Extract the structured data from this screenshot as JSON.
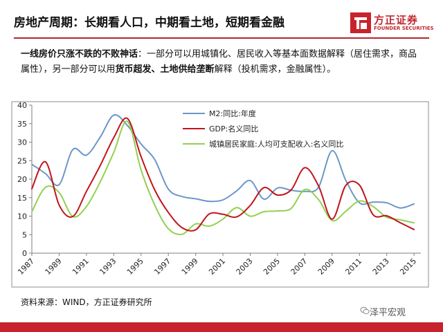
{
  "header": {
    "title": "房地产周期：长期看人口，中期看土地，短期看金融",
    "logo_cn": "方正证券",
    "logo_en": "FOUNDER SECURITIES"
  },
  "intro": {
    "lead": "一线房价只涨不跌的不败神话",
    "text1": "：一部分可以用城镇化、居民收入等基本面数据解释（居住需求，商品属性），另一部分可以用",
    "em1": "货币超发",
    "sep": "、",
    "em2": "土地供给垄断",
    "text2": "解释（投机需求，金融属性）。"
  },
  "colors": {
    "m2": "#6b96c8",
    "gdp": "#c0141c",
    "income": "#92d050",
    "accent": "#c8232c"
  },
  "chart_data": {
    "type": "line",
    "title": "",
    "xlabel": "",
    "ylabel": "",
    "xlim": [
      1987,
      2015.5
    ],
    "ylim": [
      0,
      40
    ],
    "yticks": [
      0,
      5,
      10,
      15,
      20,
      25,
      30,
      35,
      40
    ],
    "xticks": [
      1987,
      1989,
      1991,
      1993,
      1995,
      1997,
      1999,
      2001,
      2003,
      2005,
      2007,
      2009,
      2011,
      2013,
      2015
    ],
    "grid": false,
    "legend_position": "top-right",
    "series": [
      {
        "name": "M2:同比:年度",
        "color_key": "m2",
        "x": [
          1987,
          1988,
          1989,
          1990,
          1991,
          1992,
          1993,
          1994,
          1995,
          1996,
          1997,
          1998,
          1999,
          2000,
          2001,
          2002,
          2003,
          2004,
          2005,
          2006,
          2007,
          2008,
          2009,
          2010,
          2011,
          2012,
          2013,
          2014,
          2015
        ],
        "y": [
          24.0,
          21.5,
          18.5,
          28.0,
          26.5,
          31.3,
          37.3,
          34.5,
          29.5,
          25.3,
          17.3,
          15.3,
          14.7,
          14.0,
          14.4,
          16.8,
          19.6,
          14.6,
          17.6,
          17.0,
          16.7,
          17.8,
          27.7,
          19.7,
          13.6,
          13.8,
          13.6,
          12.2,
          13.3
        ]
      },
      {
        "name": "GDP:名义同比",
        "color_key": "gdp",
        "x": [
          1987,
          1988,
          1989,
          1990,
          1991,
          1992,
          1993,
          1994,
          1995,
          1996,
          1997,
          1998,
          1999,
          2000,
          2001,
          2002,
          2003,
          2004,
          2005,
          2006,
          2007,
          2008,
          2009,
          2010,
          2011,
          2012,
          2013,
          2014,
          2015
        ],
        "y": [
          17.4,
          24.7,
          13.0,
          9.9,
          16.7,
          23.6,
          31.2,
          36.4,
          26.1,
          17.1,
          11.0,
          6.9,
          6.3,
          10.6,
          10.5,
          9.8,
          12.9,
          17.7,
          15.7,
          17.1,
          23.1,
          18.2,
          9.2,
          18.3,
          18.4,
          10.4,
          10.1,
          8.2,
          6.4
        ]
      },
      {
        "name": "城镇居民家庭:人均可支配收入:名义同比",
        "color_key": "income",
        "x": [
          1987,
          1988,
          1989,
          1990,
          1991,
          1992,
          1993,
          1994,
          1995,
          1996,
          1997,
          1998,
          1999,
          2000,
          2001,
          2002,
          2003,
          2004,
          2005,
          2006,
          2007,
          2008,
          2009,
          2010,
          2011,
          2012,
          2013,
          2014,
          2015
        ],
        "y": [
          11.2,
          17.8,
          16.4,
          9.9,
          12.6,
          19.2,
          27.2,
          35.6,
          22.5,
          13.0,
          6.6,
          5.1,
          7.9,
          7.3,
          9.2,
          12.3,
          10.0,
          11.2,
          11.4,
          12.1,
          17.2,
          14.5,
          8.8,
          11.3,
          14.1,
          12.6,
          9.7,
          9.0,
          8.2
        ]
      }
    ]
  },
  "source": "资料来源：WIND，方正证券研究所",
  "watermark": "泽平宏观"
}
